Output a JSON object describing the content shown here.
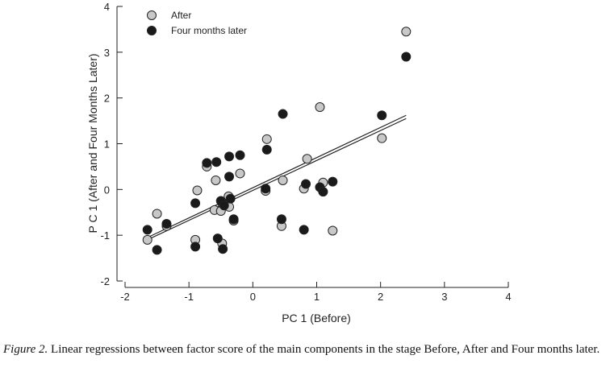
{
  "chart_data": {
    "type": "scatter",
    "xlabel": "PC 1 (Before)",
    "ylabel": "P C 1 (After and Four Months Later)",
    "xlim": [
      -2,
      4
    ],
    "ylim": [
      -2,
      4
    ],
    "xticks": [
      -2,
      -1,
      0,
      1,
      2,
      3,
      4
    ],
    "yticks": [
      -2,
      -1,
      0,
      1,
      2,
      3,
      4
    ],
    "legend_position": "top-left",
    "series": [
      {
        "name": "After",
        "color": "#c8c8c8",
        "points": [
          [
            -1.65,
            -1.1
          ],
          [
            -1.5,
            -0.53
          ],
          [
            -1.35,
            -0.8
          ],
          [
            -0.9,
            -1.1
          ],
          [
            -0.87,
            -0.02
          ],
          [
            -0.72,
            0.5
          ],
          [
            -0.58,
            0.2
          ],
          [
            -0.6,
            -0.45
          ],
          [
            -0.5,
            -0.47
          ],
          [
            -0.48,
            -1.18
          ],
          [
            -0.38,
            -0.15
          ],
          [
            -0.37,
            -0.38
          ],
          [
            -0.3,
            -0.68
          ],
          [
            -0.2,
            0.35
          ],
          [
            -0.48,
            -0.3
          ],
          [
            0.2,
            -0.03
          ],
          [
            0.22,
            1.1
          ],
          [
            0.45,
            -0.8
          ],
          [
            0.47,
            0.2
          ],
          [
            0.8,
            0.02
          ],
          [
            0.85,
            0.67
          ],
          [
            1.05,
            1.8
          ],
          [
            1.1,
            0.15
          ],
          [
            1.25,
            -0.9
          ],
          [
            2.02,
            1.12
          ],
          [
            2.4,
            3.45
          ]
        ],
        "fit": [
          [
            -1.65,
            -1.1
          ],
          [
            2.4,
            1.55
          ]
        ]
      },
      {
        "name": "Four months later",
        "color": "#1a1a1a",
        "points": [
          [
            -1.65,
            -0.88
          ],
          [
            -1.5,
            -1.32
          ],
          [
            -1.35,
            -0.75
          ],
          [
            -0.9,
            -1.25
          ],
          [
            -0.9,
            -0.3
          ],
          [
            -0.72,
            0.58
          ],
          [
            -0.57,
            0.6
          ],
          [
            -0.55,
            -1.07
          ],
          [
            -0.5,
            -0.25
          ],
          [
            -0.47,
            -1.3
          ],
          [
            -0.45,
            -0.35
          ],
          [
            -0.35,
            -0.2
          ],
          [
            -0.37,
            0.72
          ],
          [
            -0.37,
            0.28
          ],
          [
            -0.3,
            -0.65
          ],
          [
            -0.2,
            0.75
          ],
          [
            0.2,
            0.02
          ],
          [
            0.22,
            0.87
          ],
          [
            0.45,
            -0.65
          ],
          [
            0.47,
            1.65
          ],
          [
            0.8,
            -0.88
          ],
          [
            0.83,
            0.12
          ],
          [
            1.05,
            0.05
          ],
          [
            1.1,
            -0.05
          ],
          [
            1.25,
            0.17
          ],
          [
            2.02,
            1.62
          ],
          [
            2.4,
            2.9
          ]
        ],
        "fit": [
          [
            -1.65,
            -1.05
          ],
          [
            2.4,
            1.62
          ]
        ]
      }
    ]
  },
  "caption": {
    "label": "Figure 2.",
    "text": " Linear regressions between factor score of the main components in the stage Before, After and Four months later."
  }
}
